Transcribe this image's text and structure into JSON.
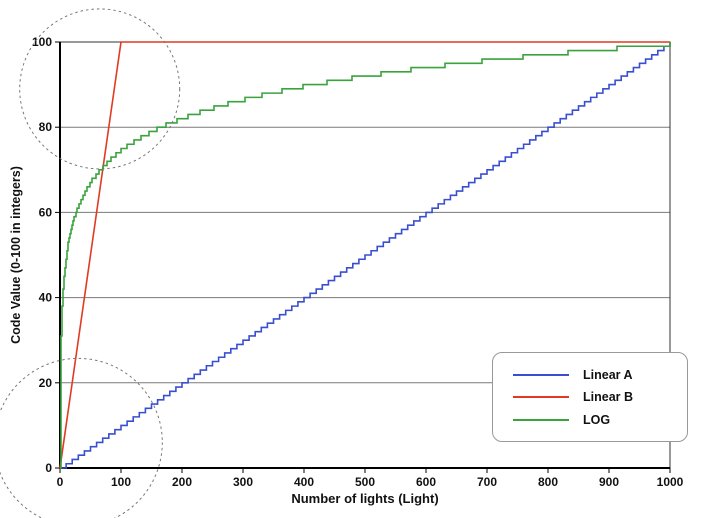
{
  "chart_data": {
    "type": "line",
    "title": "",
    "xlabel": "Number of lights (Light)",
    "ylabel": "Code Value (0-100 in integers)",
    "xlim": [
      0,
      1000
    ],
    "ylim": [
      0,
      100
    ],
    "x_ticks": [
      0,
      100,
      200,
      300,
      400,
      500,
      600,
      700,
      800,
      900,
      1000
    ],
    "y_ticks": [
      0,
      20,
      40,
      60,
      80,
      100
    ],
    "grid": "horizontal-only",
    "legend_position": "right-lower",
    "series": [
      {
        "name": "Linear A",
        "color": "#3a4fd0",
        "style": "stepped",
        "step_x": 10,
        "points": [
          [
            0,
            0
          ],
          [
            100,
            10
          ],
          [
            200,
            20
          ],
          [
            300,
            30
          ],
          [
            400,
            40
          ],
          [
            500,
            50
          ],
          [
            600,
            60
          ],
          [
            700,
            70
          ],
          [
            800,
            80
          ],
          [
            900,
            90
          ],
          [
            1000,
            100
          ]
        ],
        "note": "y = x/10 quantized to integer code values (staircase of 100 steps)"
      },
      {
        "name": "Linear B",
        "color": "#e03a22",
        "style": "linear-clipped",
        "points": [
          [
            0,
            0
          ],
          [
            100,
            100
          ],
          [
            1000,
            100
          ]
        ],
        "note": "y = x for x <= 100, clipped at code value 100 afterwards"
      },
      {
        "name": "LOG",
        "color": "#3aa33e",
        "style": "stepped-log",
        "log_gain": 10,
        "points": [
          [
            0,
            0
          ],
          [
            1,
            26
          ],
          [
            10,
            50
          ],
          [
            100,
            75
          ],
          [
            500,
            92
          ],
          [
            1000,
            100
          ]
        ],
        "note": "y = 100*log10(1+10x)/log10(10001), quantized to integers (staircase)"
      }
    ],
    "annotations": [
      {
        "type": "dashed-circle",
        "center": [
          65,
          89
        ],
        "radius_px": 80,
        "note": "highlight of top-left detail region"
      },
      {
        "type": "dashed-circle",
        "center": [
          30,
          6
        ],
        "radius_px": 84,
        "note": "highlight of origin detail region"
      }
    ]
  }
}
